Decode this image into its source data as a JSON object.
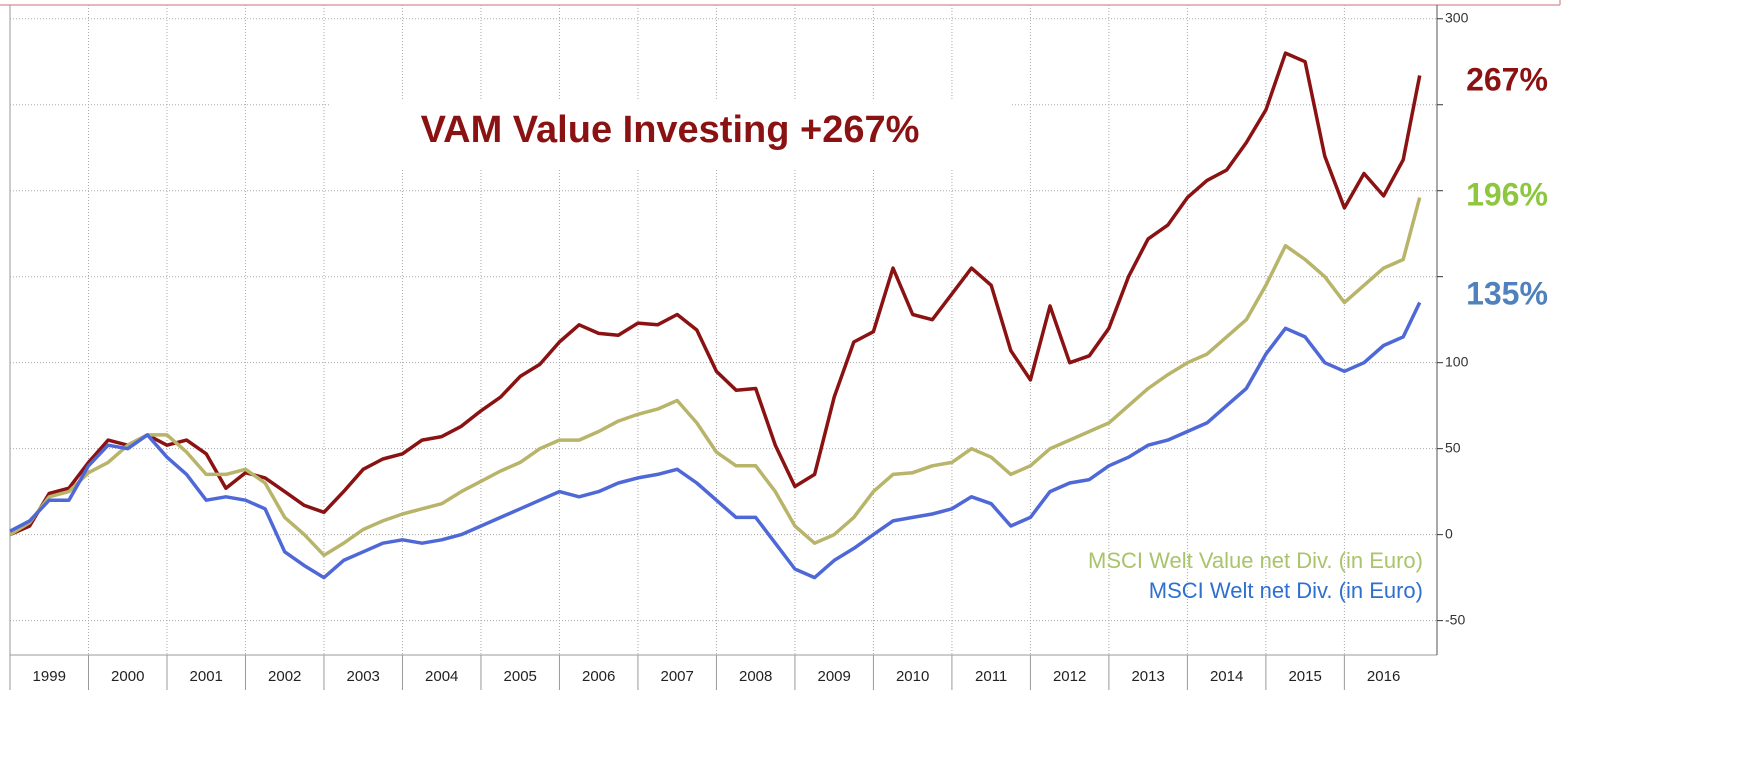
{
  "chart_data": {
    "type": "line",
    "title": "VAM Value Investing +267%",
    "x": [
      1999,
      1999.25,
      1999.5,
      1999.75,
      2000,
      2000.25,
      2000.5,
      2000.75,
      2001,
      2001.25,
      2001.5,
      2001.75,
      2002,
      2002.25,
      2002.5,
      2002.75,
      2003,
      2003.25,
      2003.5,
      2003.75,
      2004,
      2004.25,
      2004.5,
      2004.75,
      2005,
      2005.25,
      2005.5,
      2005.75,
      2006,
      2006.25,
      2006.5,
      2006.75,
      2007,
      2007.25,
      2007.5,
      2007.75,
      2008,
      2008.25,
      2008.5,
      2008.75,
      2009,
      2009.25,
      2009.5,
      2009.75,
      2010,
      2010.25,
      2010.5,
      2010.75,
      2011,
      2011.25,
      2011.5,
      2011.75,
      2012,
      2012.25,
      2012.5,
      2012.75,
      2013,
      2013.25,
      2013.5,
      2013.75,
      2014,
      2014.25,
      2014.5,
      2014.75,
      2015,
      2015.25,
      2015.5,
      2015.75,
      2016,
      2016.25,
      2016.5,
      2016.75,
      2016.96
    ],
    "series": [
      {
        "color": "#8b1212",
        "values": [
          0,
          5,
          24,
          27,
          42,
          55,
          52,
          58,
          52,
          55,
          47,
          27,
          36,
          33,
          25,
          17,
          13,
          25,
          38,
          44,
          47,
          55,
          57,
          63,
          72,
          80,
          92,
          99,
          112,
          122,
          117,
          116,
          123,
          122,
          128,
          119,
          95,
          84,
          85,
          52,
          28,
          35,
          80,
          112,
          118,
          155,
          128,
          125,
          140,
          155,
          145,
          107,
          90,
          133,
          100,
          104,
          120,
          150,
          172,
          180,
          196,
          206,
          212,
          228,
          247,
          280,
          275,
          220,
          190,
          210,
          197,
          218,
          267
        ]
      },
      {
        "name": "MSCI Welt Value net Div. (in Euro)",
        "color": "#b8b46a",
        "values": [
          0,
          7,
          22,
          25,
          36,
          42,
          52,
          58,
          58,
          48,
          35,
          35,
          38,
          30,
          10,
          0,
          -12,
          -5,
          3,
          8,
          12,
          15,
          18,
          25,
          31,
          37,
          42,
          50,
          55,
          55,
          60,
          66,
          70,
          73,
          78,
          65,
          48,
          40,
          40,
          25,
          5,
          -5,
          0,
          10,
          25,
          35,
          36,
          40,
          42,
          50,
          45,
          35,
          40,
          50,
          55,
          60,
          65,
          75,
          85,
          93,
          100,
          105,
          115,
          125,
          145,
          168,
          160,
          150,
          135,
          145,
          155,
          160,
          196
        ]
      },
      {
        "name": "MSCI Welt net Div. (in Euro)",
        "color": "#4f68d8",
        "values": [
          2,
          8,
          20,
          20,
          40,
          52,
          50,
          58,
          45,
          35,
          20,
          22,
          20,
          15,
          -10,
          -18,
          -25,
          -15,
          -10,
          -5,
          -3,
          -5,
          -3,
          0,
          5,
          10,
          15,
          20,
          25,
          22,
          25,
          30,
          33,
          35,
          38,
          30,
          20,
          10,
          10,
          -5,
          -20,
          -25,
          -15,
          -8,
          0,
          8,
          10,
          12,
          15,
          22,
          18,
          5,
          10,
          25,
          30,
          32,
          40,
          45,
          52,
          55,
          60,
          65,
          75,
          85,
          105,
          120,
          115,
          100,
          95,
          100,
          110,
          115,
          135
        ]
      }
    ],
    "end_labels": [
      {
        "text": "267%",
        "color": "#8b1212"
      },
      {
        "text": "196%",
        "color": "#8dc63f"
      },
      {
        "text": "135%",
        "color": "#4f81bd"
      }
    ],
    "legend_colors": [
      "#a9c46a",
      "#2e6fd0"
    ],
    "xlim": [
      1999,
      2017.18
    ],
    "xticks": [
      1999,
      2000,
      2001,
      2002,
      2003,
      2004,
      2005,
      2006,
      2007,
      2008,
      2009,
      2010,
      2011,
      2012,
      2013,
      2014,
      2015,
      2016
    ],
    "ylim": [
      -70,
      308
    ],
    "yticks": [
      -50,
      0,
      50,
      100,
      {
        "value": 150,
        "label": null
      },
      {
        "value": 200,
        "label": null
      },
      {
        "value": 250,
        "label": null
      },
      300
    ],
    "grid": true
  }
}
